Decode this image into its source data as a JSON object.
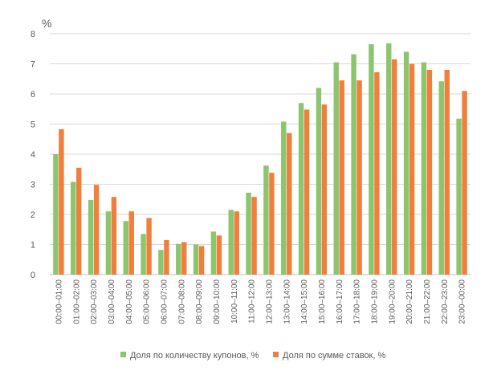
{
  "chart_data": {
    "type": "bar",
    "title": "",
    "ylabel": "%",
    "xlabel": "",
    "ylim": [
      0,
      8
    ],
    "yticks": [
      0,
      1,
      2,
      3,
      4,
      5,
      6,
      7,
      8
    ],
    "grid": true,
    "legend_position": "bottom",
    "categories": [
      "00:00–01:00",
      "01:00–02:00",
      "02:00–03:00",
      "03:00–04:00",
      "04:00–05:00",
      "05:00–06:00",
      "06:00–07:00",
      "07:00–08:00",
      "08:00–09:00",
      "09:00–10:00",
      "10:00–11:00",
      "11:00–12:00",
      "12:00–13:00",
      "13:00–14:00",
      "14:00–15:00",
      "15:00–16:00",
      "16:00–17:00",
      "17:00–18:00",
      "18:00–19:00",
      "19:00–20:00",
      "20:00–21:00",
      "21:00–22:00",
      "22:00–23:00",
      "23:00–00:00"
    ],
    "series": [
      {
        "name": "Доля по количеству купонов, %",
        "color": "#8cc56c",
        "values": [
          4.0,
          3.08,
          2.48,
          2.1,
          1.78,
          1.35,
          0.82,
          1.02,
          1.0,
          1.43,
          2.15,
          2.72,
          3.62,
          5.08,
          5.7,
          6.2,
          7.05,
          7.32,
          7.65,
          7.68,
          7.4,
          7.05,
          6.42,
          5.18
        ]
      },
      {
        "name": "Доля по сумме ставок, %",
        "color": "#f07e3c",
        "values": [
          4.83,
          3.55,
          2.98,
          2.58,
          2.1,
          1.88,
          1.15,
          1.08,
          0.95,
          1.3,
          2.1,
          2.58,
          3.38,
          4.7,
          5.48,
          5.65,
          6.45,
          6.45,
          6.72,
          7.15,
          7.0,
          6.8,
          6.8,
          6.1
        ]
      }
    ]
  }
}
